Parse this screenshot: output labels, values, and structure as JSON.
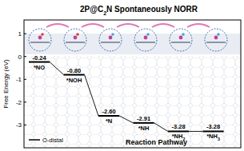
{
  "chart_data": {
    "type": "step",
    "title": "2P@C2N Spontaneously NORR",
    "y_label": "Free Energy (eV)",
    "x_label": "Reaction Pathway",
    "categories": [
      "*NO",
      "*NOH",
      "*N",
      "*NH",
      "*NH2",
      "*NH3"
    ],
    "series": [
      {
        "name": "O-distal",
        "color": "#000000",
        "values": [
          -0.24,
          -0.8,
          -2.6,
          -2.91,
          -3.28,
          -3.28
        ],
        "value_labels": [
          "-0.24",
          "-0.80",
          "-2.60",
          "-2.91",
          "-3.28",
          "-3.28"
        ]
      }
    ],
    "ylim": [
      -4,
      1.6
    ],
    "yticks": [
      -3,
      -2,
      -1,
      0,
      1
    ],
    "data_labels": true,
    "legend": "bottom-left"
  }
}
